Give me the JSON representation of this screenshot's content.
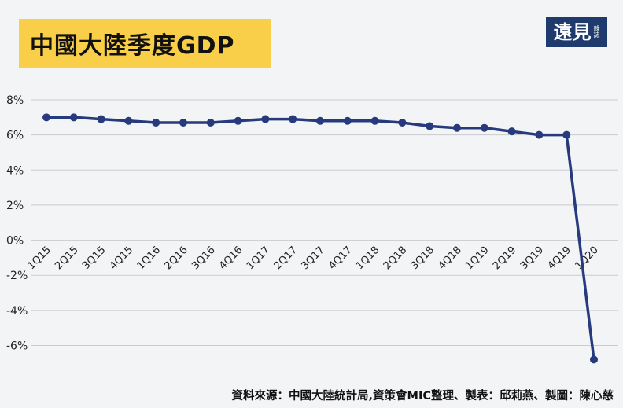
{
  "header": {
    "title": "中國大陸季度GDP"
  },
  "logo": {
    "main": "遠見",
    "sub": "雜誌"
  },
  "source_note": "資料來源：中國大陸統計局,資策會MIC整理、製表：邱莉燕、製圖：陳心慈",
  "colors": {
    "line": "#263a7d",
    "grid": "#c9cbd0",
    "title_bg": "#f9cf4a",
    "background": "#f3f4f6",
    "logo_bg": "#1f3a6d"
  },
  "chart_data": {
    "type": "line",
    "title": "中國大陸季度GDP",
    "xlabel": "",
    "ylabel": "",
    "ylim": [
      -8,
      8
    ],
    "yticks": [
      8,
      6,
      4,
      2,
      0,
      -2,
      -4,
      -6
    ],
    "ytick_labels": [
      "8%",
      "6%",
      "4%",
      "2%",
      "0%",
      "-2%",
      "-4%",
      "-6%"
    ],
    "grid": true,
    "categories": [
      "1Q15",
      "2Q15",
      "3Q15",
      "4Q15",
      "1Q16",
      "2Q16",
      "3Q16",
      "4Q16",
      "1Q17",
      "2Q17",
      "3Q17",
      "4Q17",
      "1Q18",
      "2Q18",
      "3Q18",
      "4Q18",
      "1Q19",
      "2Q19",
      "3Q19",
      "4Q19",
      "1Q20"
    ],
    "series": [
      {
        "name": "GDP",
        "values": [
          7.0,
          7.0,
          6.9,
          6.8,
          6.7,
          6.7,
          6.7,
          6.8,
          6.9,
          6.9,
          6.8,
          6.8,
          6.8,
          6.7,
          6.5,
          6.4,
          6.4,
          6.2,
          6.0,
          6.0,
          -6.8
        ]
      }
    ]
  }
}
